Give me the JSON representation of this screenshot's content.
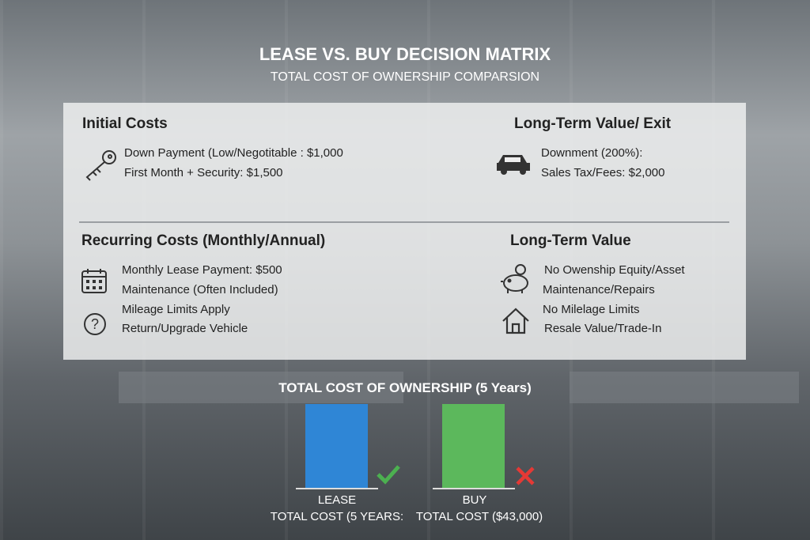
{
  "header": {
    "title": "LEASE VS. BUY DECISION MATRIX",
    "subtitle": "TOTAL COST OF OWNERSHIP COMPARSION"
  },
  "sections": [
    {
      "title": "Initial Costs",
      "items": [
        "Down Payment (Low/Negotitable : $1,000",
        "First Month + Security: $1,500"
      ]
    },
    {
      "title": "Long-Term Value/ Exit",
      "items": [
        "Downment (200%):",
        "Sales Tax/Fees: $2,000"
      ]
    },
    {
      "title": "Recurring Costs (Monthly/Annual)",
      "items": [
        "Monthly Lease Payment: $500",
        "Maintenance (Often Included)",
        "Mileage Limits Apply",
        "Return/Upgrade Vehicle"
      ]
    },
    {
      "title": "Long-Term Value",
      "items": [
        "No Owenship Equity/Asset",
        "Maintenance/Repairs",
        "No Milelage Limits",
        "Resale Value/Trade-In"
      ]
    }
  ],
  "comparison": {
    "title": "TOTAL COST OF OWNERSHIP (5 Years)",
    "options": [
      {
        "label": "LEASE",
        "caption": "TOTAL COST (5 YEARS:"
      },
      {
        "label": "BUY",
        "caption": "TOTAL COST ($43,000)"
      }
    ]
  }
}
